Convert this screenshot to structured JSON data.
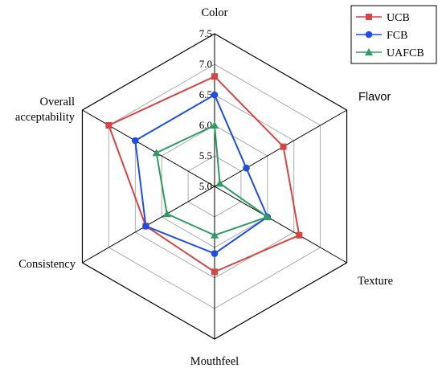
{
  "chart_data": {
    "type": "radar",
    "title": "",
    "axes": [
      {
        "key": "color",
        "label": "Color"
      },
      {
        "key": "flavor",
        "label": "Flavor"
      },
      {
        "key": "texture",
        "label": "Texture"
      },
      {
        "key": "mouthfeel",
        "label": "Mouthfeel"
      },
      {
        "key": "consistency",
        "label": "Consistency"
      },
      {
        "key": "overall",
        "label": "Overall\nacceptability"
      }
    ],
    "rlim": [
      5.0,
      7.5
    ],
    "ticks": [
      5.0,
      5.5,
      6.0,
      6.5,
      7.0,
      7.5
    ],
    "tick_labels": [
      "5.0",
      "5.5",
      "6.0",
      "6.5",
      "7.0",
      "7.5"
    ],
    "grid": true,
    "legend_position": "top-right",
    "series": [
      {
        "name": "UCB",
        "color": "#d64541",
        "marker": "square",
        "values": [
          6.8,
          6.3,
          6.6,
          6.4,
          6.3,
          7.0
        ]
      },
      {
        "name": "FCB",
        "color": "#1f4fe0",
        "marker": "circle",
        "values": [
          6.5,
          5.6,
          6.0,
          6.1,
          6.3,
          6.5
        ]
      },
      {
        "name": "UAFCB",
        "color": "#2e9b63",
        "marker": "triangle",
        "values": [
          6.0,
          5.1,
          6.0,
          5.8,
          5.9,
          6.1
        ]
      }
    ]
  }
}
